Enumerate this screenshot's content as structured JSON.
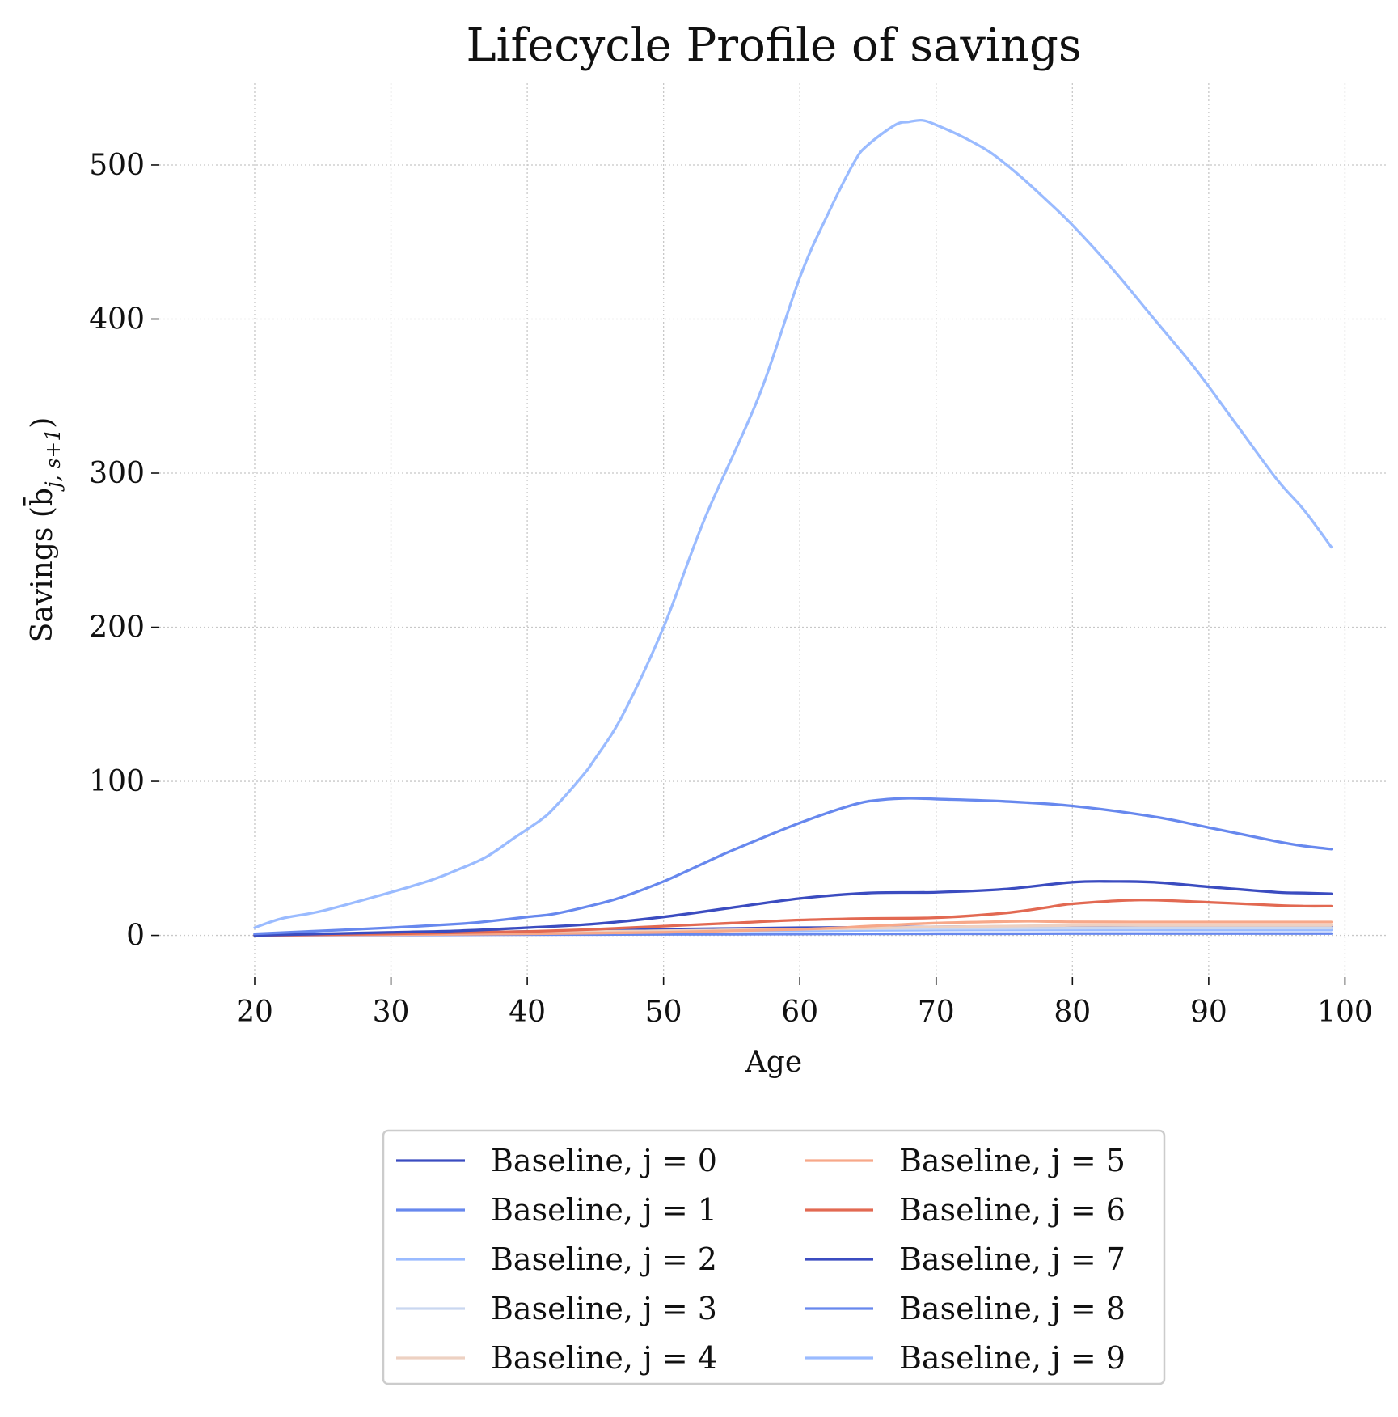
{
  "chart_data": {
    "type": "line",
    "title": "Lifecycle Profile of savings",
    "xlabel": "Age",
    "ylabel": "Savings (b̄",
    "ylabel_sub": "j, s+1",
    "ylabel_close": ")",
    "xlim": [
      13,
      103
    ],
    "ylim": [
      -27,
      553
    ],
    "xticks": [
      20,
      30,
      40,
      50,
      60,
      70,
      80,
      90,
      100
    ],
    "yticks": [
      0,
      100,
      200,
      300,
      400,
      500
    ],
    "grid": true,
    "legend_position": "bottom-center",
    "legend_columns": 2,
    "series": [
      {
        "name": "Baseline, j = 0",
        "color": "#3b4cc0",
        "x": [
          20,
          30,
          40,
          45,
          50,
          55,
          60,
          65,
          70,
          75,
          80,
          85,
          90,
          95,
          97,
          99
        ],
        "y": [
          0.5,
          1.5,
          2.5,
          3,
          4,
          4.5,
          5,
          5.2,
          5.5,
          5.8,
          6,
          6.1,
          6,
          6,
          6,
          6
        ]
      },
      {
        "name": "Baseline, j = 1",
        "color": "#6788ee",
        "x": [
          20,
          30,
          40,
          45,
          50,
          55,
          60,
          65,
          70,
          75,
          80,
          85,
          90,
          95,
          97,
          99
        ],
        "y": [
          0.2,
          0.3,
          0.5,
          0.6,
          0.7,
          0.8,
          0.9,
          1,
          1.1,
          1.1,
          1.2,
          1.2,
          1.2,
          1.2,
          1.2,
          1.2
        ]
      },
      {
        "name": "Baseline, j = 2",
        "color": "#9abbff",
        "x": [
          20,
          30,
          40,
          45,
          50,
          55,
          60,
          65,
          70,
          75,
          80,
          85,
          90,
          95,
          97,
          99
        ],
        "y": [
          0.5,
          1,
          1.5,
          2,
          2.5,
          3,
          3,
          3.3,
          3.5,
          3.6,
          3.6,
          3.6,
          3.5,
          3.5,
          3.5,
          3.5
        ]
      },
      {
        "name": "Baseline, j = 3",
        "color": "#c9d7f0",
        "x": [
          20,
          30,
          40,
          45,
          50,
          55,
          60,
          65,
          70,
          75,
          80,
          85,
          90,
          95,
          97,
          99
        ],
        "y": [
          0.5,
          1,
          2,
          2.5,
          3,
          3.5,
          4,
          4.3,
          4.5,
          4.6,
          4.7,
          4.8,
          4.8,
          4.8,
          4.8,
          4.8
        ]
      },
      {
        "name": "Baseline, j = 4",
        "color": "#edd1c2",
        "x": [
          20,
          30,
          40,
          45,
          50,
          55,
          60,
          65,
          70,
          75,
          80,
          85,
          90,
          95,
          97,
          99
        ],
        "y": [
          0.5,
          1,
          2,
          2.5,
          3,
          3.5,
          4,
          4.8,
          5.5,
          6,
          6.5,
          6.5,
          6.5,
          6.5,
          6.5,
          6.5
        ]
      },
      {
        "name": "Baseline, j = 5",
        "color": "#f7a889",
        "x": [
          20,
          30,
          40,
          45,
          50,
          55,
          60,
          63,
          65,
          70,
          75,
          77,
          80,
          85,
          90,
          95,
          99
        ],
        "y": [
          0.2,
          0.5,
          1,
          1.5,
          2,
          3,
          4,
          5,
          6,
          8,
          9,
          9.2,
          8.8,
          8.7,
          8.7,
          8.7,
          8.7
        ]
      },
      {
        "name": "Baseline, j = 6",
        "color": "#e26952",
        "x": [
          20,
          30,
          35,
          40,
          45,
          50,
          55,
          60,
          65,
          70,
          75,
          78,
          80,
          85,
          90,
          95,
          97,
          99
        ],
        "y": [
          0,
          1,
          1.8,
          2.5,
          4,
          6,
          8,
          10,
          11,
          11.5,
          14.5,
          18,
          20.5,
          23,
          21.5,
          19.5,
          19,
          19
        ]
      },
      {
        "name": "Baseline, j = 7",
        "color": "#3b4cc0",
        "x": [
          20,
          25,
          30,
          35,
          40,
          45,
          50,
          55,
          60,
          65,
          70,
          75,
          80,
          83,
          86,
          90,
          95,
          97,
          99
        ],
        "y": [
          0,
          1,
          2,
          3,
          5,
          7.5,
          12,
          18,
          24,
          27.5,
          28,
          30,
          34.5,
          35,
          34.5,
          31.5,
          28,
          27.5,
          27
        ]
      },
      {
        "name": "Baseline, j = 8",
        "color": "#6788ee",
        "x": [
          20,
          25,
          30,
          35,
          37,
          40,
          42,
          45,
          47,
          50,
          53,
          55,
          60,
          64,
          66,
          68,
          70,
          75,
          80,
          86,
          90,
          95,
          97,
          99
        ],
        "y": [
          1,
          3,
          5,
          7.5,
          9,
          12,
          14,
          20,
          25,
          35,
          47,
          55,
          73,
          85,
          88,
          89,
          88.5,
          87,
          84,
          77,
          70,
          61,
          58,
          56
        ]
      },
      {
        "name": "Baseline, j = 9",
        "color": "#9abbff",
        "x": [
          20,
          22,
          25,
          30,
          33,
          35,
          37,
          39,
          41,
          42,
          44,
          45,
          47,
          50,
          53,
          57,
          60,
          62,
          64,
          65,
          67,
          68,
          69,
          70,
          72,
          74,
          76,
          78,
          80,
          83,
          86,
          89,
          92,
          95,
          97,
          99
        ],
        "y": [
          5,
          11,
          16,
          28,
          36,
          43,
          51,
          63,
          75,
          83,
          103,
          115,
          143,
          200,
          270,
          350,
          427,
          467,
          502,
          513,
          526,
          528,
          529,
          526,
          518,
          508,
          494,
          478,
          461,
          432,
          400,
          368,
          332,
          296,
          276,
          252
        ]
      }
    ]
  }
}
